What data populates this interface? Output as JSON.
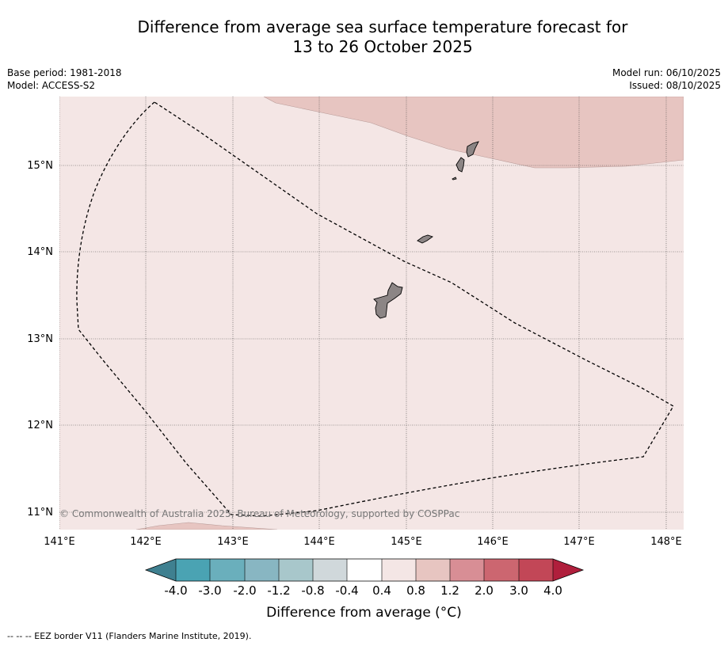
{
  "title": {
    "line1": "Difference from average sea surface temperature forecast for",
    "line2": "13 to 26 October 2025"
  },
  "meta": {
    "base_period": "Base period: 1981-2018",
    "model": "Model: ACCESS-S2",
    "model_run": "Model run: 06/10/2025",
    "issued": "Issued: 08/10/2025"
  },
  "map": {
    "lon_labels": [
      "141°E",
      "142°E",
      "143°E",
      "144°E",
      "145°E",
      "146°E",
      "147°E",
      "148°E"
    ],
    "lat_labels": [
      "15°N",
      "14°N",
      "13°N",
      "12°N",
      "11°N"
    ],
    "copyright": "© Commonwealth of Australia 2025, Bureau of Meteorology, supported by COSPPac",
    "background_color": "#f4e6e5",
    "warm_patch_color": "#e7c5c1",
    "land_color": "#8c8585"
  },
  "colorbar": {
    "ticks": [
      "-4.0",
      "-3.0",
      "-2.0",
      "-1.2",
      "-0.8",
      "-0.4",
      "0.4",
      "0.8",
      "1.2",
      "2.0",
      "3.0",
      "4.0"
    ],
    "colors": [
      "#3f8090",
      "#4aa3b3",
      "#6aafbc",
      "#88b6c2",
      "#a8c7cb",
      "#d0d8db",
      "#ffffff",
      "#f4e6e5",
      "#e7c5c1",
      "#d88e95",
      "#cc6670",
      "#c24757",
      "#b01f3c"
    ],
    "label": "Difference from average (°C)"
  },
  "legend": {
    "eez": "--  --  -- EEZ border V11 (Flanders Marine Institute, 2019)."
  }
}
